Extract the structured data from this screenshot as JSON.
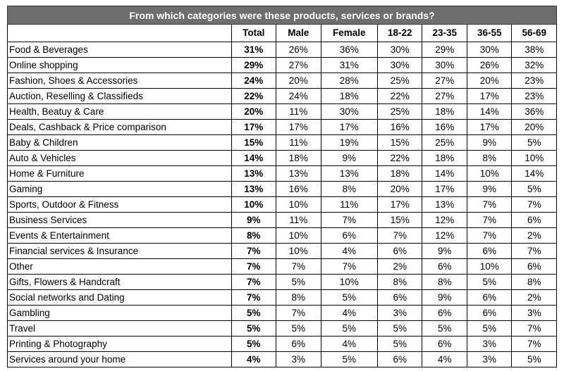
{
  "chart_data": {
    "type": "table",
    "title": "From which categories were these products, services or brands?",
    "columns": [
      "",
      "Total",
      "Male",
      "Female",
      "18-22",
      "23-35",
      "36-55",
      "56-69"
    ],
    "rows": [
      {
        "category": "Food & Beverages",
        "values": [
          "31%",
          "26%",
          "36%",
          "30%",
          "29%",
          "30%",
          "38%"
        ]
      },
      {
        "category": "Online shopping",
        "values": [
          "29%",
          "27%",
          "31%",
          "30%",
          "30%",
          "26%",
          "32%"
        ]
      },
      {
        "category": "Fashion, Shoes & Accessories",
        "values": [
          "24%",
          "20%",
          "28%",
          "25%",
          "27%",
          "20%",
          "23%"
        ]
      },
      {
        "category": "Auction, Reselling & Classifieds",
        "values": [
          "22%",
          "24%",
          "18%",
          "22%",
          "27%",
          "17%",
          "23%"
        ]
      },
      {
        "category": "Health, Beatuy & Care",
        "values": [
          "20%",
          "11%",
          "30%",
          "25%",
          "18%",
          "14%",
          "36%"
        ]
      },
      {
        "category": "Deals, Cashback & Price comparison",
        "values": [
          "17%",
          "17%",
          "17%",
          "16%",
          "16%",
          "17%",
          "20%"
        ]
      },
      {
        "category": "Baby & Children",
        "values": [
          "15%",
          "11%",
          "19%",
          "15%",
          "25%",
          "9%",
          "5%"
        ]
      },
      {
        "category": "Auto & Vehicles",
        "values": [
          "14%",
          "18%",
          "9%",
          "22%",
          "18%",
          "8%",
          "10%"
        ]
      },
      {
        "category": "Home & Furniture",
        "values": [
          "13%",
          "13%",
          "13%",
          "18%",
          "14%",
          "10%",
          "14%"
        ]
      },
      {
        "category": "Gaming",
        "values": [
          "13%",
          "16%",
          "8%",
          "20%",
          "17%",
          "9%",
          "5%"
        ]
      },
      {
        "category": "Sports, Outdoor & Fitness",
        "values": [
          "10%",
          "10%",
          "11%",
          "17%",
          "13%",
          "7%",
          "7%"
        ]
      },
      {
        "category": "Business Services",
        "values": [
          "9%",
          "11%",
          "7%",
          "15%",
          "12%",
          "7%",
          "6%"
        ]
      },
      {
        "category": "Events & Entertainment",
        "values": [
          "8%",
          "10%",
          "6%",
          "7%",
          "12%",
          "7%",
          "2%"
        ]
      },
      {
        "category": "Financial services & Insurance",
        "values": [
          "7%",
          "10%",
          "4%",
          "6%",
          "9%",
          "6%",
          "7%"
        ]
      },
      {
        "category": "Other",
        "values": [
          "7%",
          "7%",
          "7%",
          "2%",
          "6%",
          "10%",
          "6%"
        ]
      },
      {
        "category": "Gifts, Flowers & Handcraft",
        "values": [
          "7%",
          "5%",
          "10%",
          "8%",
          "8%",
          "5%",
          "8%"
        ]
      },
      {
        "category": "Social networks and Dating",
        "values": [
          "7%",
          "8%",
          "5%",
          "6%",
          "9%",
          "6%",
          "2%"
        ]
      },
      {
        "category": "Gambling",
        "values": [
          "5%",
          "7%",
          "4%",
          "3%",
          "6%",
          "6%",
          "3%"
        ]
      },
      {
        "category": "Travel",
        "values": [
          "5%",
          "5%",
          "5%",
          "5%",
          "5%",
          "5%",
          "7%"
        ]
      },
      {
        "category": "Printing & Photography",
        "values": [
          "5%",
          "6%",
          "4%",
          "5%",
          "6%",
          "3%",
          "7%"
        ]
      },
      {
        "category": "Services around your home",
        "values": [
          "4%",
          "3%",
          "5%",
          "6%",
          "4%",
          "3%",
          "5%"
        ]
      }
    ],
    "colors": {
      "title_background": "#6e6e6e",
      "title_text": "#ffffff",
      "border": "#000000"
    }
  }
}
